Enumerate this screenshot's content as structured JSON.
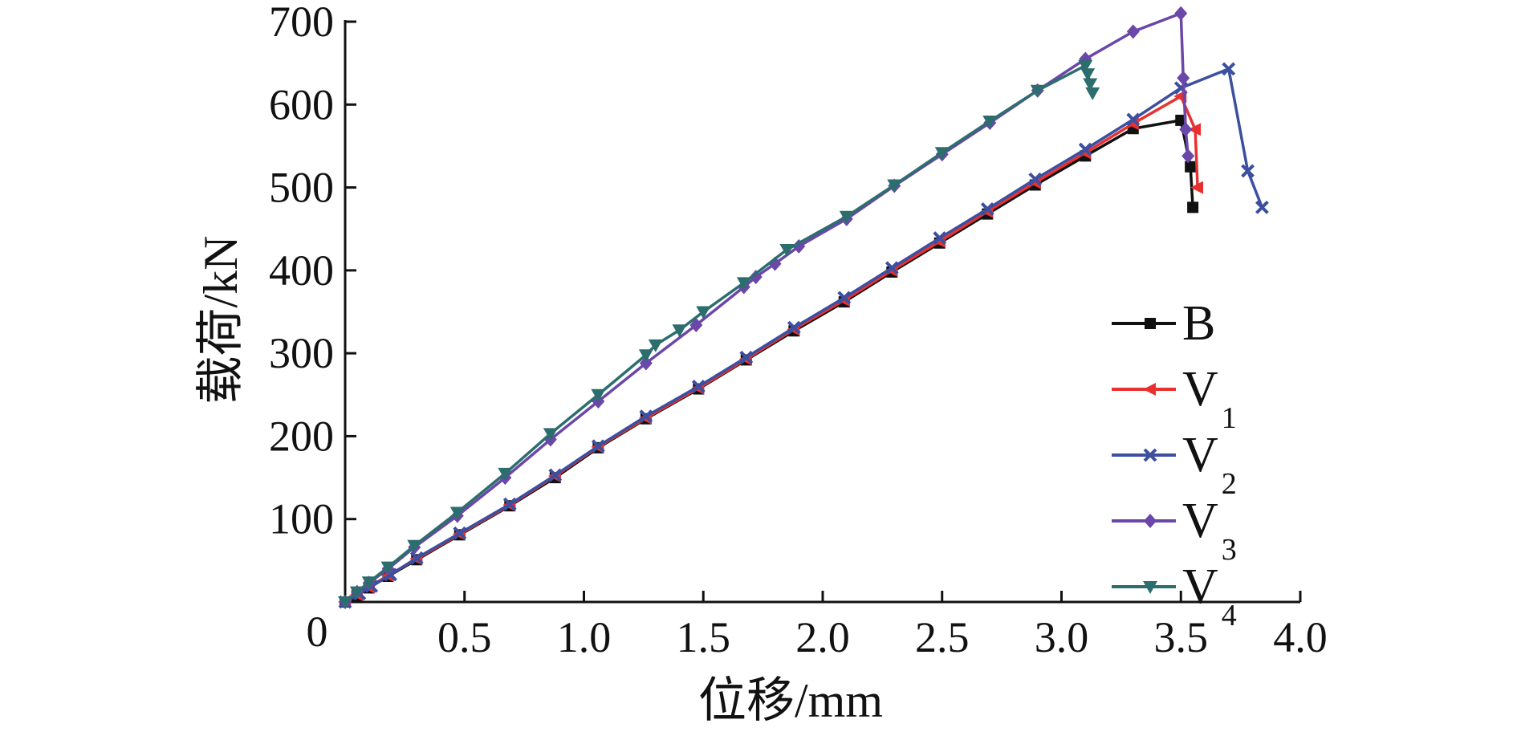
{
  "chart_data": {
    "type": "line",
    "title": "",
    "xlabel": "位移/mm",
    "ylabel": "载荷/kN",
    "xlim": [
      0,
      4.0
    ],
    "ylim": [
      0,
      700
    ],
    "x_origin_label": "0",
    "xticks": [
      0.5,
      1.0,
      1.5,
      2.0,
      2.5,
      3.0,
      3.5,
      4.0
    ],
    "xtick_labels": [
      "0.5",
      "1.0",
      "1.5",
      "2.0",
      "2.5",
      "3.0",
      "3.5",
      "4.0"
    ],
    "yticks": [
      100,
      200,
      300,
      400,
      500,
      600,
      700
    ],
    "ytick_labels": [
      "100",
      "200",
      "300",
      "400",
      "500",
      "600",
      "700"
    ],
    "grid": false,
    "legend_position": "right-middle",
    "series": [
      {
        "name": "B",
        "base": "B",
        "sub": "",
        "color": "#111111",
        "marker": "square",
        "points": [
          [
            0,
            0
          ],
          [
            0.05,
            8
          ],
          [
            0.1,
            17
          ],
          [
            0.18,
            31
          ],
          [
            0.3,
            51
          ],
          [
            0.48,
            81
          ],
          [
            0.69,
            116
          ],
          [
            0.88,
            150
          ],
          [
            1.06,
            186
          ],
          [
            1.26,
            221
          ],
          [
            1.48,
            257
          ],
          [
            1.68,
            292
          ],
          [
            1.88,
            327
          ],
          [
            2.09,
            362
          ],
          [
            2.29,
            398
          ],
          [
            2.49,
            433
          ],
          [
            2.69,
            468
          ],
          [
            2.89,
            503
          ],
          [
            3.1,
            538
          ],
          [
            3.3,
            571
          ],
          [
            3.5,
            581
          ],
          [
            3.54,
            525
          ],
          [
            3.55,
            476
          ]
        ]
      },
      {
        "name": "V1",
        "base": "V",
        "sub": "1",
        "color": "#e8312f",
        "marker": "triangle-left",
        "points": [
          [
            0,
            0
          ],
          [
            0.05,
            9
          ],
          [
            0.1,
            18
          ],
          [
            0.18,
            32
          ],
          [
            0.3,
            52
          ],
          [
            0.48,
            82
          ],
          [
            0.69,
            117
          ],
          [
            0.88,
            152
          ],
          [
            1.06,
            187
          ],
          [
            1.26,
            222
          ],
          [
            1.48,
            258
          ],
          [
            1.68,
            293
          ],
          [
            1.88,
            329
          ],
          [
            2.09,
            364
          ],
          [
            2.29,
            400
          ],
          [
            2.49,
            435
          ],
          [
            2.69,
            471
          ],
          [
            2.89,
            506
          ],
          [
            3.1,
            542
          ],
          [
            3.3,
            577
          ],
          [
            3.5,
            610
          ],
          [
            3.56,
            570
          ],
          [
            3.57,
            500
          ]
        ]
      },
      {
        "name": "V2",
        "base": "V",
        "sub": "2",
        "color": "#3c4fa0",
        "marker": "x",
        "points": [
          [
            0,
            0
          ],
          [
            0.06,
            10
          ],
          [
            0.11,
            19
          ],
          [
            0.19,
            33
          ],
          [
            0.3,
            53
          ],
          [
            0.48,
            83
          ],
          [
            0.69,
            118
          ],
          [
            0.88,
            153
          ],
          [
            1.06,
            188
          ],
          [
            1.26,
            224
          ],
          [
            1.48,
            260
          ],
          [
            1.68,
            295
          ],
          [
            1.88,
            331
          ],
          [
            2.09,
            367
          ],
          [
            2.29,
            403
          ],
          [
            2.49,
            439
          ],
          [
            2.69,
            474
          ],
          [
            2.89,
            510
          ],
          [
            3.1,
            546
          ],
          [
            3.3,
            582
          ],
          [
            3.5,
            620
          ],
          [
            3.7,
            643
          ],
          [
            3.78,
            520
          ],
          [
            3.84,
            476
          ]
        ]
      },
      {
        "name": "V3",
        "base": "V",
        "sub": "3",
        "color": "#6a47a8",
        "marker": "diamond",
        "points": [
          [
            0,
            0
          ],
          [
            0.05,
            12
          ],
          [
            0.1,
            23
          ],
          [
            0.18,
            40
          ],
          [
            0.29,
            66
          ],
          [
            0.47,
            104
          ],
          [
            0.67,
            150
          ],
          [
            0.86,
            196
          ],
          [
            1.06,
            242
          ],
          [
            1.26,
            288
          ],
          [
            1.47,
            334
          ],
          [
            1.67,
            380
          ],
          [
            1.72,
            392
          ],
          [
            1.8,
            408
          ],
          [
            1.9,
            429
          ],
          [
            2.1,
            462
          ],
          [
            2.3,
            502
          ],
          [
            2.5,
            540
          ],
          [
            2.7,
            578
          ],
          [
            2.9,
            617
          ],
          [
            3.1,
            655
          ],
          [
            3.3,
            688
          ],
          [
            3.5,
            710
          ],
          [
            3.51,
            632
          ],
          [
            3.52,
            570
          ],
          [
            3.53,
            538
          ]
        ]
      },
      {
        "name": "V4",
        "base": "V",
        "sub": "4",
        "color": "#2c6e6e",
        "marker": "triangle-down",
        "points": [
          [
            0,
            0
          ],
          [
            0.05,
            12
          ],
          [
            0.1,
            24
          ],
          [
            0.18,
            42
          ],
          [
            0.29,
            68
          ],
          [
            0.47,
            108
          ],
          [
            0.67,
            155
          ],
          [
            0.86,
            203
          ],
          [
            1.06,
            250
          ],
          [
            1.26,
            298
          ],
          [
            1.3,
            310
          ],
          [
            1.4,
            328
          ],
          [
            1.5,
            350
          ],
          [
            1.67,
            385
          ],
          [
            1.85,
            425
          ],
          [
            2.1,
            465
          ],
          [
            2.3,
            503
          ],
          [
            2.5,
            542
          ],
          [
            2.7,
            580
          ],
          [
            2.9,
            617
          ],
          [
            3.1,
            647
          ],
          [
            3.11,
            637
          ],
          [
            3.12,
            625
          ],
          [
            3.13,
            614
          ]
        ]
      }
    ]
  }
}
